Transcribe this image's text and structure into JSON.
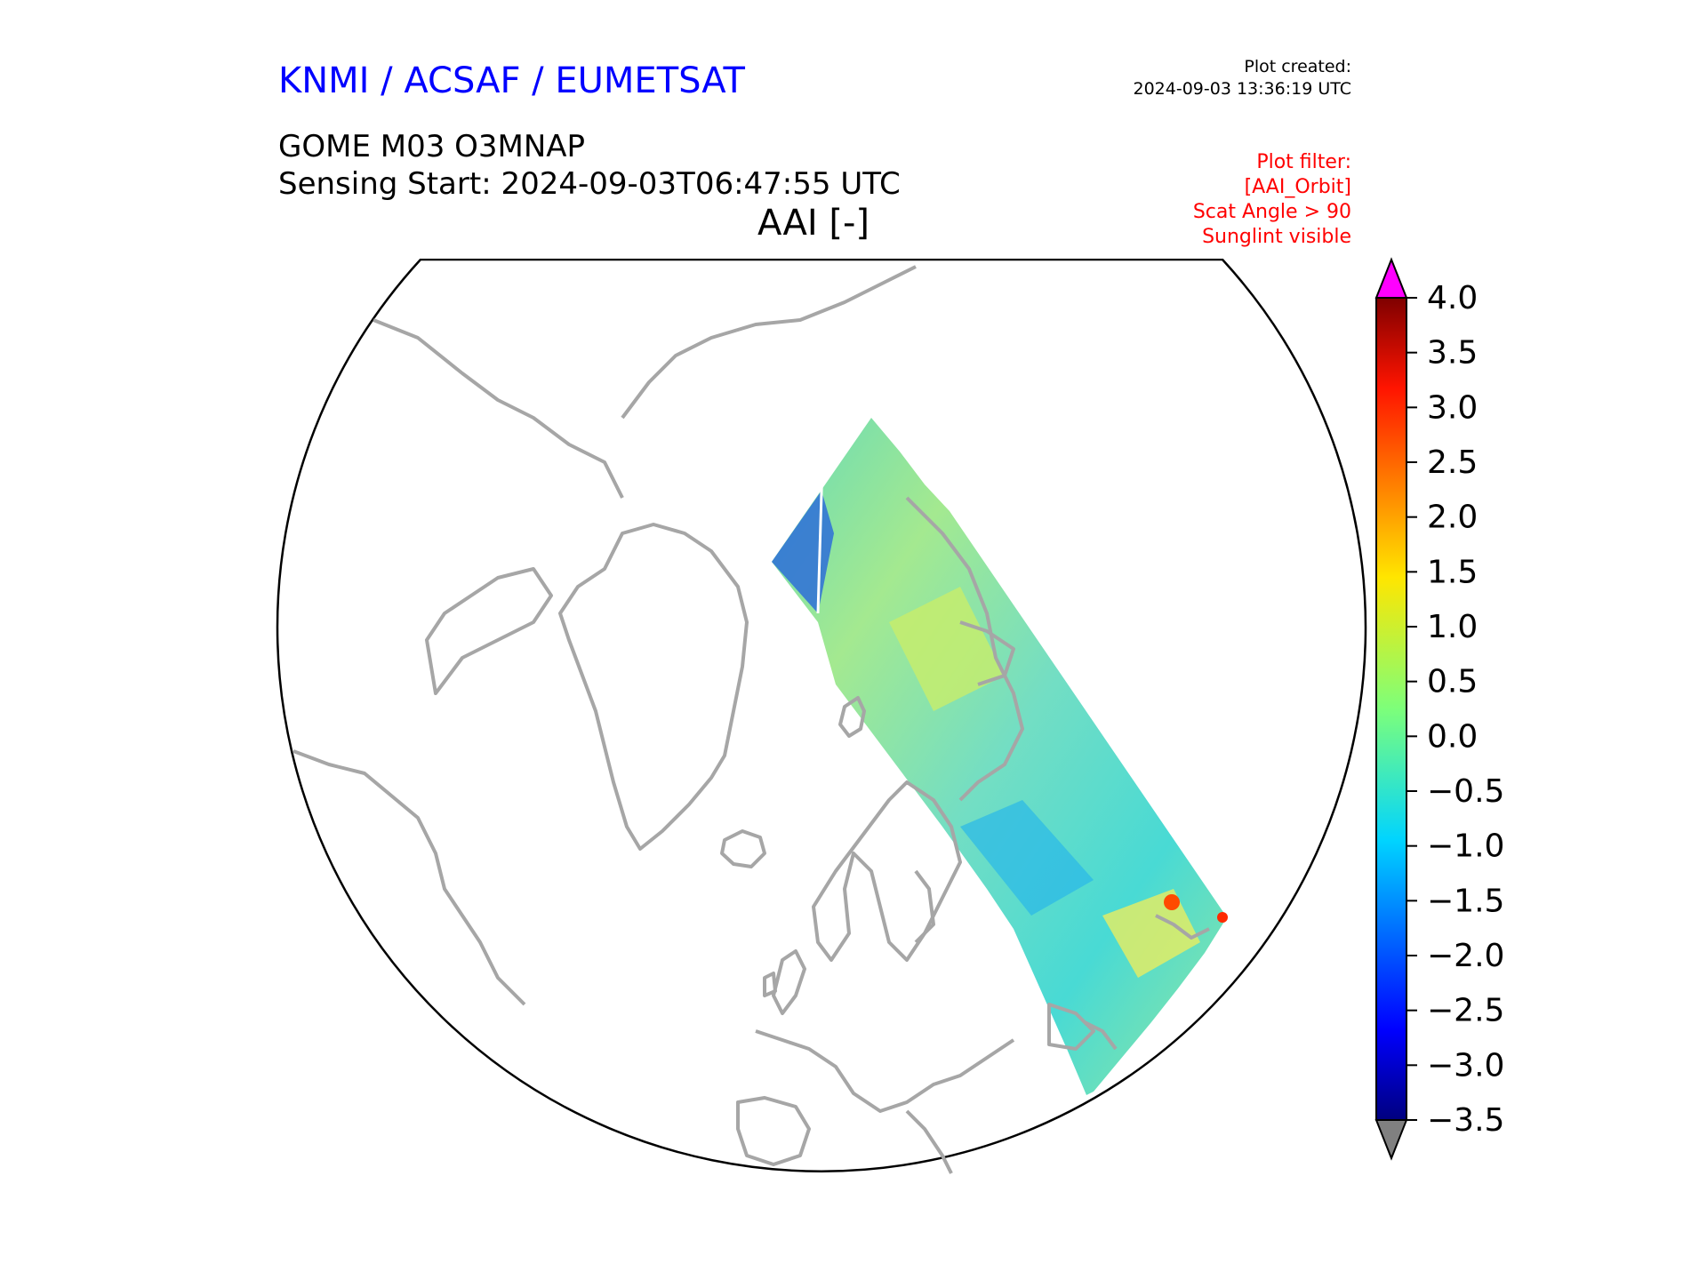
{
  "header": {
    "org": "KNMI / ACSAF / EUMETSAT",
    "created_label": "Plot created:",
    "created_time": "2024-09-03 13:36:19 UTC",
    "product": "GOME M03 O3MNAP",
    "sensing_start": "Sensing Start: 2024-09-03T06:47:55 UTC",
    "parameter": "AAI [-]"
  },
  "filter_lines": [
    "Plot filter:",
    "[AAI_Orbit]",
    "Scat Angle > 90",
    "Sunglint visible"
  ],
  "colors": {
    "title_blue": "#0000ff",
    "filter_red": "#ff0000",
    "coastline_gray": "#a6a6a6",
    "extend_max": "#ff00ff",
    "extend_min": "#808080"
  },
  "map": {
    "projection": "polar stereographic (north)",
    "coastlines": "gray",
    "features": [
      "Greenland",
      "Iceland",
      "Svalbard",
      "Scandinavia",
      "Europe",
      "Russia",
      "Canada",
      "Alaska"
    ]
  },
  "colorbar": {
    "colormap": "jet",
    "min": -3.5,
    "max": 4.0,
    "extend": "both",
    "ticks": [
      "4.0",
      "3.5",
      "3.0",
      "2.5",
      "2.0",
      "1.5",
      "1.0",
      "0.5",
      "0.0",
      "−0.5",
      "−1.0",
      "−1.5",
      "−2.0",
      "−2.5",
      "−3.0",
      "−3.5"
    ]
  }
}
